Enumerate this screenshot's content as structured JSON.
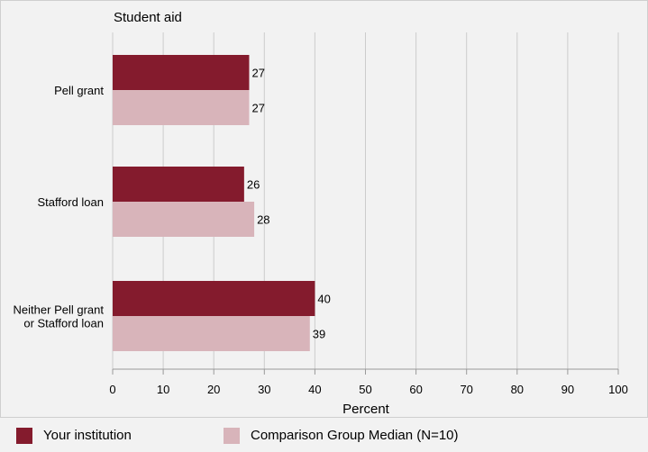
{
  "chart_data": {
    "type": "bar",
    "orientation": "horizontal",
    "title": "Student aid",
    "xlabel": "Percent",
    "xlim": [
      0,
      100
    ],
    "xticks": [
      0,
      10,
      20,
      30,
      40,
      50,
      60,
      70,
      80,
      90,
      100
    ],
    "grid": true,
    "categories": [
      [
        "Pell grant"
      ],
      [
        "Stafford loan"
      ],
      [
        "Neither Pell grant",
        "or Stafford loan"
      ]
    ],
    "series": [
      {
        "name": "Your institution",
        "values": [
          27,
          26,
          40
        ],
        "color": "#841b2d"
      },
      {
        "name": "Comparison Group Median (N=10)",
        "values": [
          27,
          28,
          39
        ],
        "color": "#d8b4ba"
      }
    ],
    "legend_position": "bottom"
  }
}
